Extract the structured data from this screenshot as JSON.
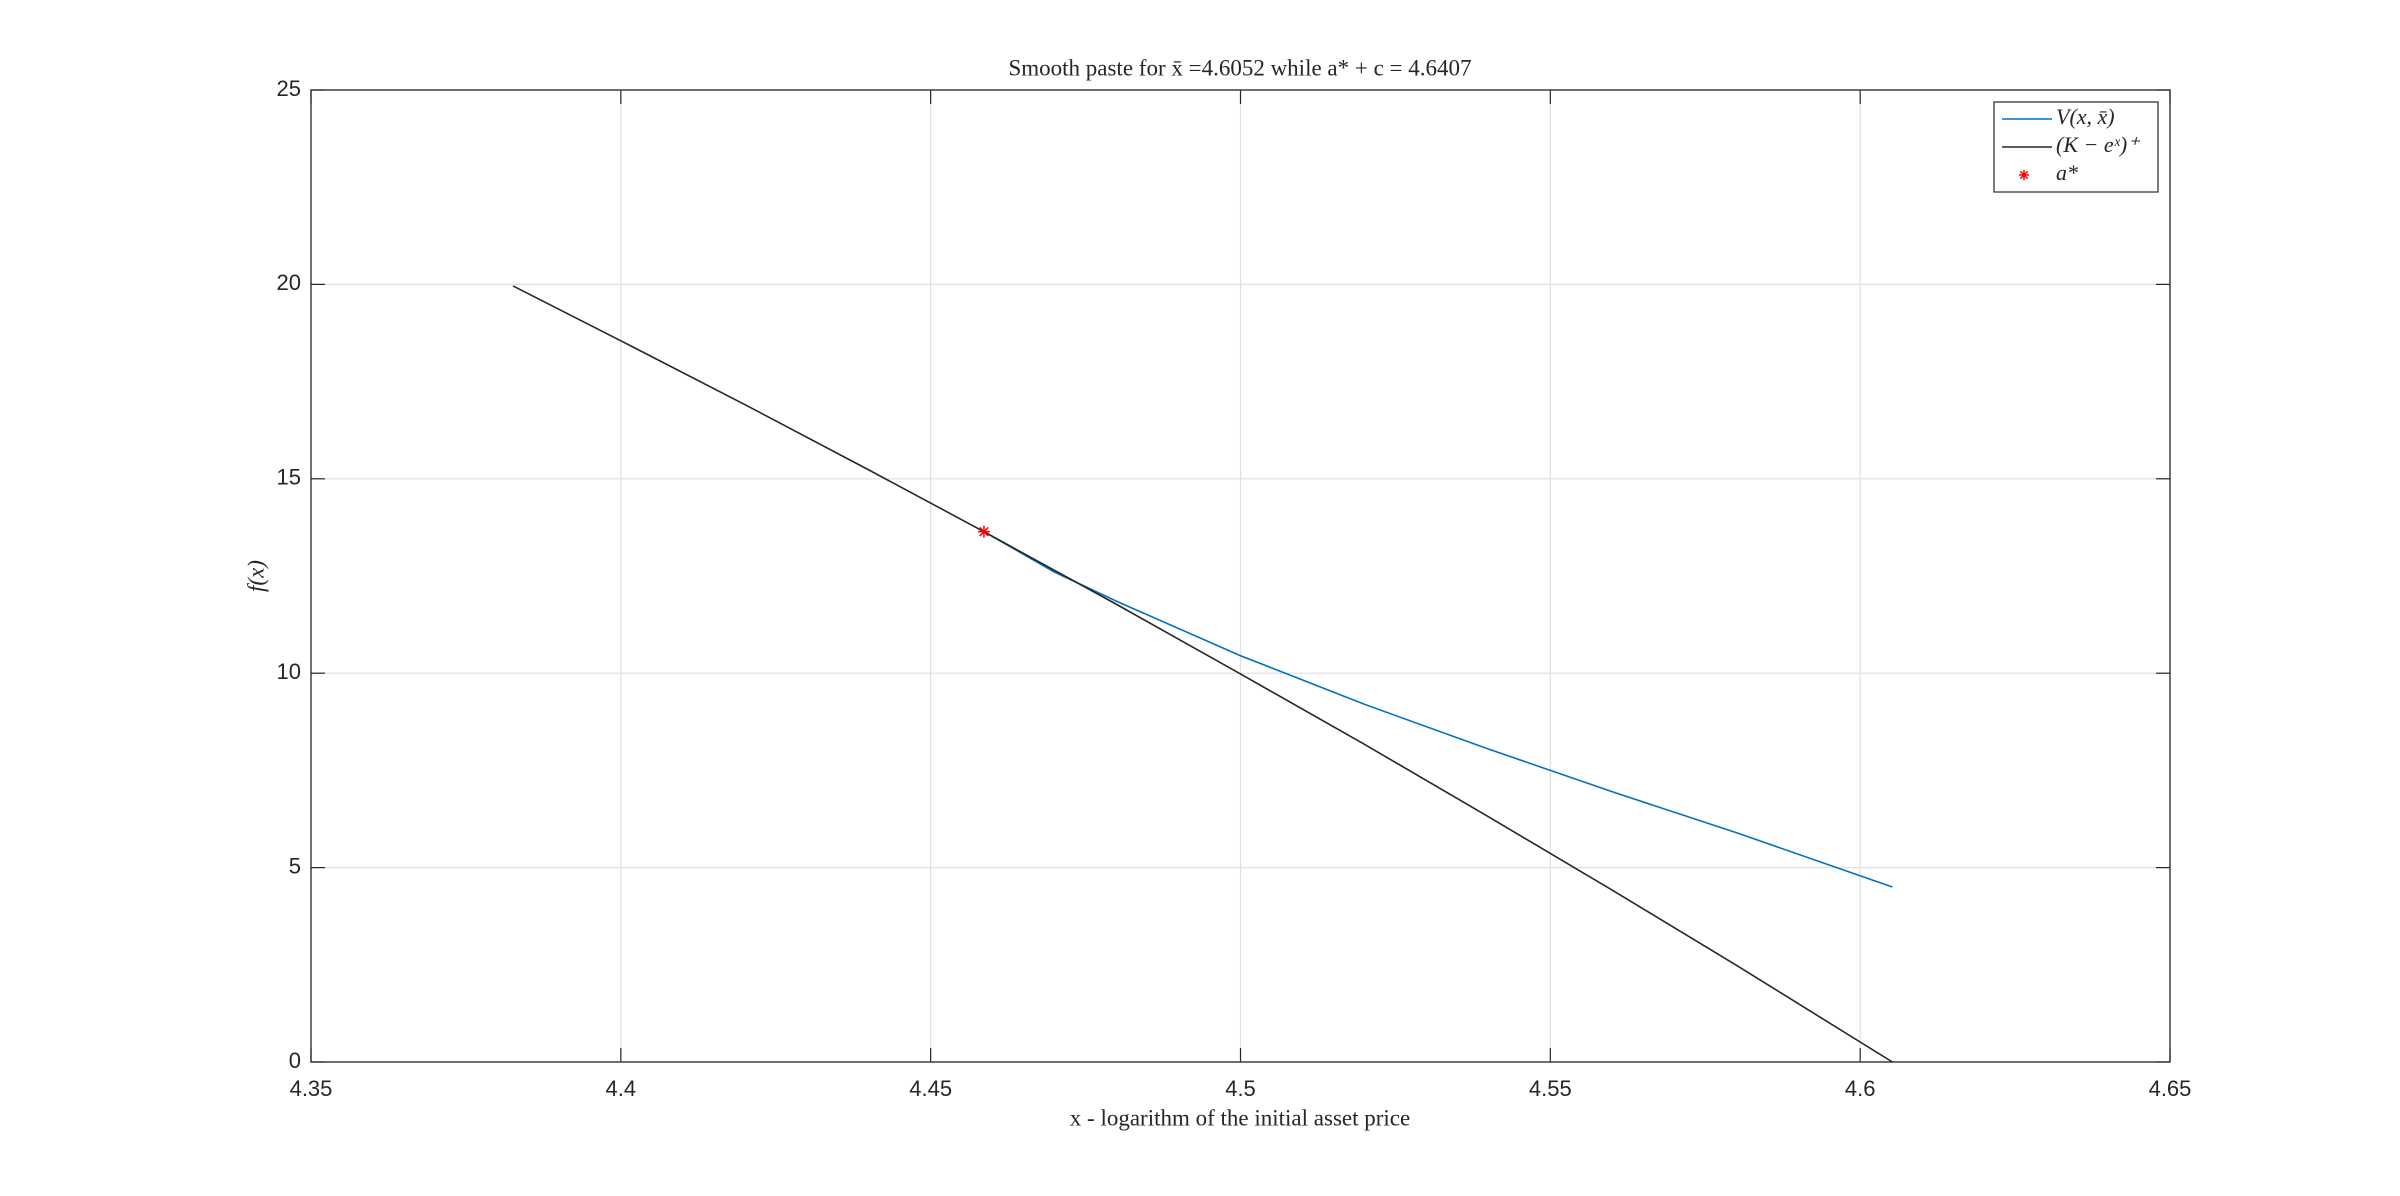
{
  "chart_data": {
    "type": "line",
    "title": "Smooth paste for x̄ =4.6052 while a* + c = 4.6407",
    "x_label": "x - logarithm of the initial asset price",
    "y_label": "f(x)",
    "series": [
      {
        "name": "V(x, x̄)",
        "color": "#0072bd",
        "type": "line",
        "x": [
          4.4586,
          4.47,
          4.48,
          4.5,
          4.52,
          4.54,
          4.56,
          4.58,
          4.6052
        ],
        "values": [
          13.64,
          12.6,
          11.85,
          10.45,
          9.2,
          8.05,
          6.95,
          5.9,
          4.5
        ]
      },
      {
        "name": "(K − eˣ)⁺",
        "color": "#262626",
        "type": "line",
        "x": [
          4.3826,
          4.4,
          4.42,
          4.44,
          4.4586,
          4.48,
          4.5,
          4.52,
          4.54,
          4.56,
          4.58,
          4.6052
        ],
        "values": [
          19.96,
          18.55,
          16.91,
          15.23,
          13.64,
          11.77,
          9.98,
          8.17,
          6.31,
          4.42,
          2.49,
          0
        ]
      },
      {
        "name": "a*",
        "color": "#ff0000",
        "type": "scatter",
        "marker": "*",
        "x": [
          4.4586
        ],
        "values": [
          13.64
        ]
      }
    ],
    "xlim": [
      4.35,
      4.65
    ],
    "xticks": [
      4.35,
      4.4,
      4.45,
      4.5,
      4.55,
      4.6,
      4.65
    ],
    "ylim": [
      0,
      25
    ],
    "yticks": [
      0,
      5,
      10,
      15,
      20,
      25
    ],
    "grid": true,
    "legend_location": "northeast"
  }
}
